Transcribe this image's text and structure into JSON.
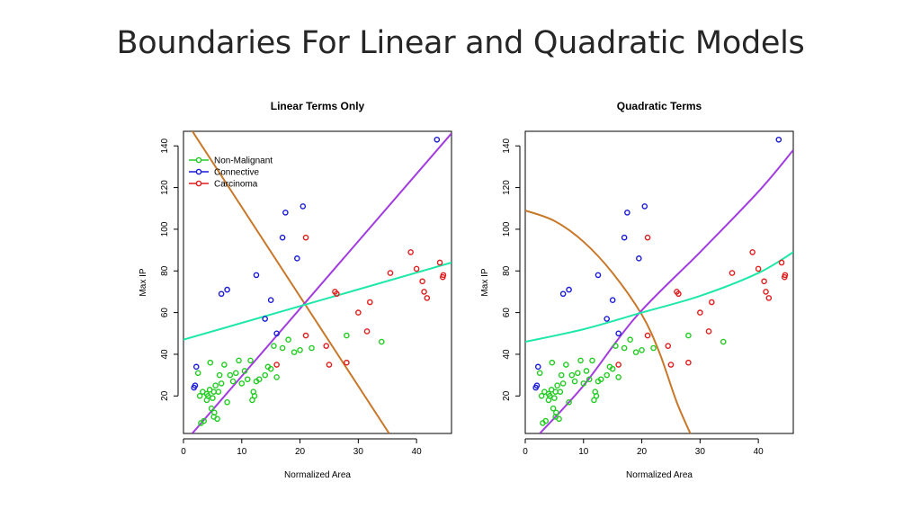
{
  "slide": {
    "title": "Boundaries For Linear and Quadratic Models"
  },
  "colors": {
    "non_malignant": "#22cc22",
    "connective": "#1a1ad8",
    "carcinoma": "#e01c1c",
    "boundary_orange": "#c8782a",
    "boundary_purple": "#a23be0",
    "boundary_teal": "#1de8a8"
  },
  "legend": {
    "items": [
      {
        "label": "Non-Malignant",
        "color": "#22cc22"
      },
      {
        "label": "Connective",
        "color": "#1a1ad8"
      },
      {
        "label": "Carcinoma",
        "color": "#e01c1c"
      }
    ]
  },
  "chart_data": [
    {
      "type": "scatter",
      "title": "Linear Terms Only",
      "xlabel": "Normalized Area",
      "ylabel": "Max IP",
      "xlim": [
        0,
        46
      ],
      "ylim": [
        2,
        147
      ],
      "xticks": [
        0,
        10,
        20,
        30,
        40
      ],
      "yticks": [
        20,
        40,
        60,
        80,
        100,
        120,
        140
      ],
      "legend_position": "top-left",
      "series": [
        {
          "name": "Non-Malignant",
          "x": [
            3,
            3.5,
            3.3,
            4,
            4.2,
            4.5,
            5,
            5.2,
            5.5,
            6,
            6.2,
            6.5,
            4.8,
            5.3,
            7,
            7.5,
            8,
            8.5,
            9,
            9.5,
            10,
            10.5,
            11,
            11.5,
            12,
            12.5,
            13,
            11.8,
            12.2,
            14,
            14.5,
            15,
            15.5,
            16,
            17,
            18,
            19,
            20,
            22,
            28,
            34,
            2.5,
            2.8,
            4,
            4.6,
            5.2,
            5.8
          ],
          "y": [
            7,
            8,
            22,
            18,
            20,
            23,
            19,
            22,
            25,
            22,
            30,
            26,
            14,
            12,
            35,
            17,
            30,
            27,
            31,
            37,
            26,
            32,
            28,
            37,
            22,
            27,
            28,
            18,
            20,
            30,
            34,
            33,
            44,
            29,
            43,
            47,
            41,
            42,
            43,
            49,
            46,
            31,
            20,
            21,
            36,
            10,
            9
          ]
        },
        {
          "name": "Connective",
          "x": [
            2,
            2.2,
            1.8,
            6.5,
            7.5,
            12.5,
            14,
            15,
            16,
            17,
            17.5,
            19.5,
            20.5,
            43.5
          ],
          "y": [
            25,
            34,
            24,
            69,
            71,
            78,
            57,
            66,
            50,
            96,
            108,
            86,
            111,
            143
          ]
        },
        {
          "name": "Carcinoma",
          "x": [
            16,
            21,
            21,
            24.5,
            25,
            26,
            26.3,
            28,
            30,
            31.5,
            32,
            35.5,
            39,
            40,
            41,
            41.3,
            41.8,
            44,
            44.5,
            44.6
          ],
          "y": [
            35,
            49,
            96,
            44,
            35,
            70,
            69,
            36,
            60,
            51,
            65,
            79,
            89,
            81,
            75,
            70,
            67,
            84,
            77,
            78
          ]
        }
      ],
      "boundaries": [
        {
          "color": "#c8782a",
          "x": [
            1.3,
            35.3
          ],
          "y": [
            148,
            2
          ]
        },
        {
          "color": "#a23be0",
          "x": [
            1.5,
            46
          ],
          "y": [
            2,
            146
          ]
        },
        {
          "color": "#1de8a8",
          "x": [
            0,
            46
          ],
          "y": [
            47,
            84
          ]
        }
      ]
    },
    {
      "type": "scatter",
      "title": "Quadratic Terms",
      "xlabel": "Normalized Area",
      "ylabel": "Max IP",
      "xlim": [
        0,
        46
      ],
      "ylim": [
        2,
        147
      ],
      "xticks": [
        0,
        10,
        20,
        30,
        40
      ],
      "yticks": [
        20,
        40,
        60,
        80,
        100,
        120,
        140
      ],
      "series": [
        {
          "name": "Non-Malignant",
          "x": [
            3,
            3.5,
            3.3,
            4,
            4.2,
            4.5,
            5,
            5.2,
            5.5,
            6,
            6.2,
            6.5,
            4.8,
            5.3,
            7,
            7.5,
            8,
            8.5,
            9,
            9.5,
            10,
            10.5,
            11,
            11.5,
            12,
            12.5,
            13,
            11.8,
            12.2,
            14,
            14.5,
            15,
            15.5,
            16,
            17,
            18,
            19,
            20,
            22,
            28,
            34,
            2.5,
            2.8,
            4,
            4.6,
            5.2,
            5.8
          ],
          "y": [
            7,
            8,
            22,
            18,
            20,
            23,
            19,
            22,
            25,
            22,
            30,
            26,
            14,
            12,
            35,
            17,
            30,
            27,
            31,
            37,
            26,
            32,
            28,
            37,
            22,
            27,
            28,
            18,
            20,
            30,
            34,
            33,
            44,
            29,
            43,
            47,
            41,
            42,
            43,
            49,
            46,
            31,
            20,
            21,
            36,
            10,
            9
          ]
        },
        {
          "name": "Connective",
          "x": [
            2,
            2.2,
            1.8,
            6.5,
            7.5,
            12.5,
            14,
            15,
            16,
            17,
            17.5,
            19.5,
            20.5,
            43.5
          ],
          "y": [
            25,
            34,
            24,
            69,
            71,
            78,
            57,
            66,
            50,
            96,
            108,
            86,
            111,
            143
          ]
        },
        {
          "name": "Carcinoma",
          "x": [
            16,
            21,
            21,
            24.5,
            25,
            26,
            26.3,
            28,
            30,
            31.5,
            32,
            35.5,
            39,
            40,
            41,
            41.3,
            41.8,
            44,
            44.5,
            44.6
          ],
          "y": [
            35,
            49,
            96,
            44,
            35,
            70,
            69,
            36,
            60,
            51,
            65,
            79,
            89,
            81,
            75,
            70,
            67,
            84,
            77,
            78
          ]
        }
      ],
      "boundaries": [
        {
          "color": "#c8782a",
          "x": [
            0,
            5,
            10,
            15,
            20,
            23,
            26,
            28.5
          ],
          "y": [
            109,
            104,
            94,
            79,
            59,
            41,
            17,
            1
          ]
        },
        {
          "color": "#a23be0",
          "x": [
            2.5,
            10,
            19,
            30,
            40,
            46
          ],
          "y": [
            2,
            25,
            58,
            89,
            118,
            138
          ]
        },
        {
          "color": "#1de8a8",
          "x": [
            0,
            10,
            20,
            30,
            40,
            46
          ],
          "y": [
            46,
            52,
            60,
            68,
            79,
            89
          ]
        }
      ]
    }
  ]
}
